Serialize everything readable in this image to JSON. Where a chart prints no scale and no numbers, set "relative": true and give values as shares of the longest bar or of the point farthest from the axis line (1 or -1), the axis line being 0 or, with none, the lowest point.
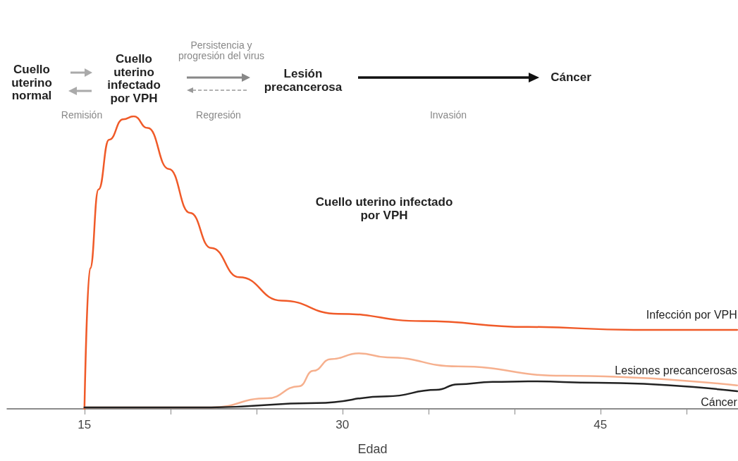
{
  "chart_data": {
    "type": "line",
    "relative": true,
    "xlabel": "Edad",
    "xlim": [
      10.5,
      53
    ],
    "xticks": [
      15,
      {
        "value": 20,
        "label": null
      },
      {
        "value": 25,
        "label": null
      },
      30,
      {
        "value": 35,
        "label": null
      },
      {
        "value": 40,
        "label": null
      },
      45,
      {
        "value": 50,
        "label": null
      }
    ],
    "grid": false,
    "legend": false,
    "marker": "none",
    "line_style": "solid",
    "annotations": [
      "Cuello uterino normal",
      "Cuello uterino infectado por VPH",
      "Persistencia y progresión del virus",
      "Lesión precancerosa",
      "Cáncer",
      "Remisión",
      "Regresión",
      "Invasión",
      "Cuello uterino infectado por VPH"
    ],
    "series": [
      {
        "name": "Infección por VPH",
        "color": "#f05a28",
        "x": [
          15,
          15.33,
          15.82,
          16.43,
          17.25,
          17.87,
          18.68,
          19.91,
          21.14,
          22.37,
          24.0,
          26.46,
          29.74,
          34.65,
          40.79,
          46.93,
          52.95
        ],
        "values": [
          0,
          0.48,
          0.75,
          0.92,
          0.99,
          1.0,
          0.96,
          0.82,
          0.67,
          0.55,
          0.45,
          0.37,
          0.325,
          0.3,
          0.28,
          0.27,
          0.27
        ]
      },
      {
        "name": "Lesiones precancerosas",
        "color": "#f6b08e",
        "x": [
          15,
          22.37,
          25.64,
          27.48,
          28.3,
          29.33,
          30.96,
          32.6,
          36.7,
          42.83,
          52.95
        ],
        "values": [
          0.005,
          0.005,
          0.036,
          0.077,
          0.13,
          0.17,
          0.19,
          0.176,
          0.145,
          0.113,
          0.08
        ]
      },
      {
        "name": "Cáncer",
        "color": "#222222",
        "x": [
          15,
          22.37,
          28.51,
          32.6,
          35.47,
          36.7,
          38.74,
          40.79,
          44.88,
          52.95
        ],
        "values": [
          0.005,
          0.005,
          0.02,
          0.043,
          0.065,
          0.084,
          0.092,
          0.094,
          0.089,
          0.06
        ]
      }
    ]
  }
}
